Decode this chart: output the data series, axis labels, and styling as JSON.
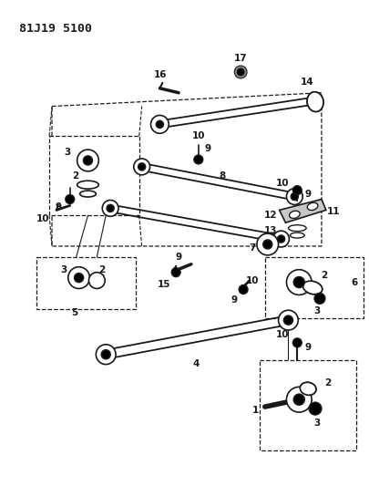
{
  "title": "81J19 5100",
  "bg_color": "#ffffff",
  "line_color": "#1a1a1a",
  "fig_width": 4.06,
  "fig_height": 5.33,
  "dpi": 100
}
